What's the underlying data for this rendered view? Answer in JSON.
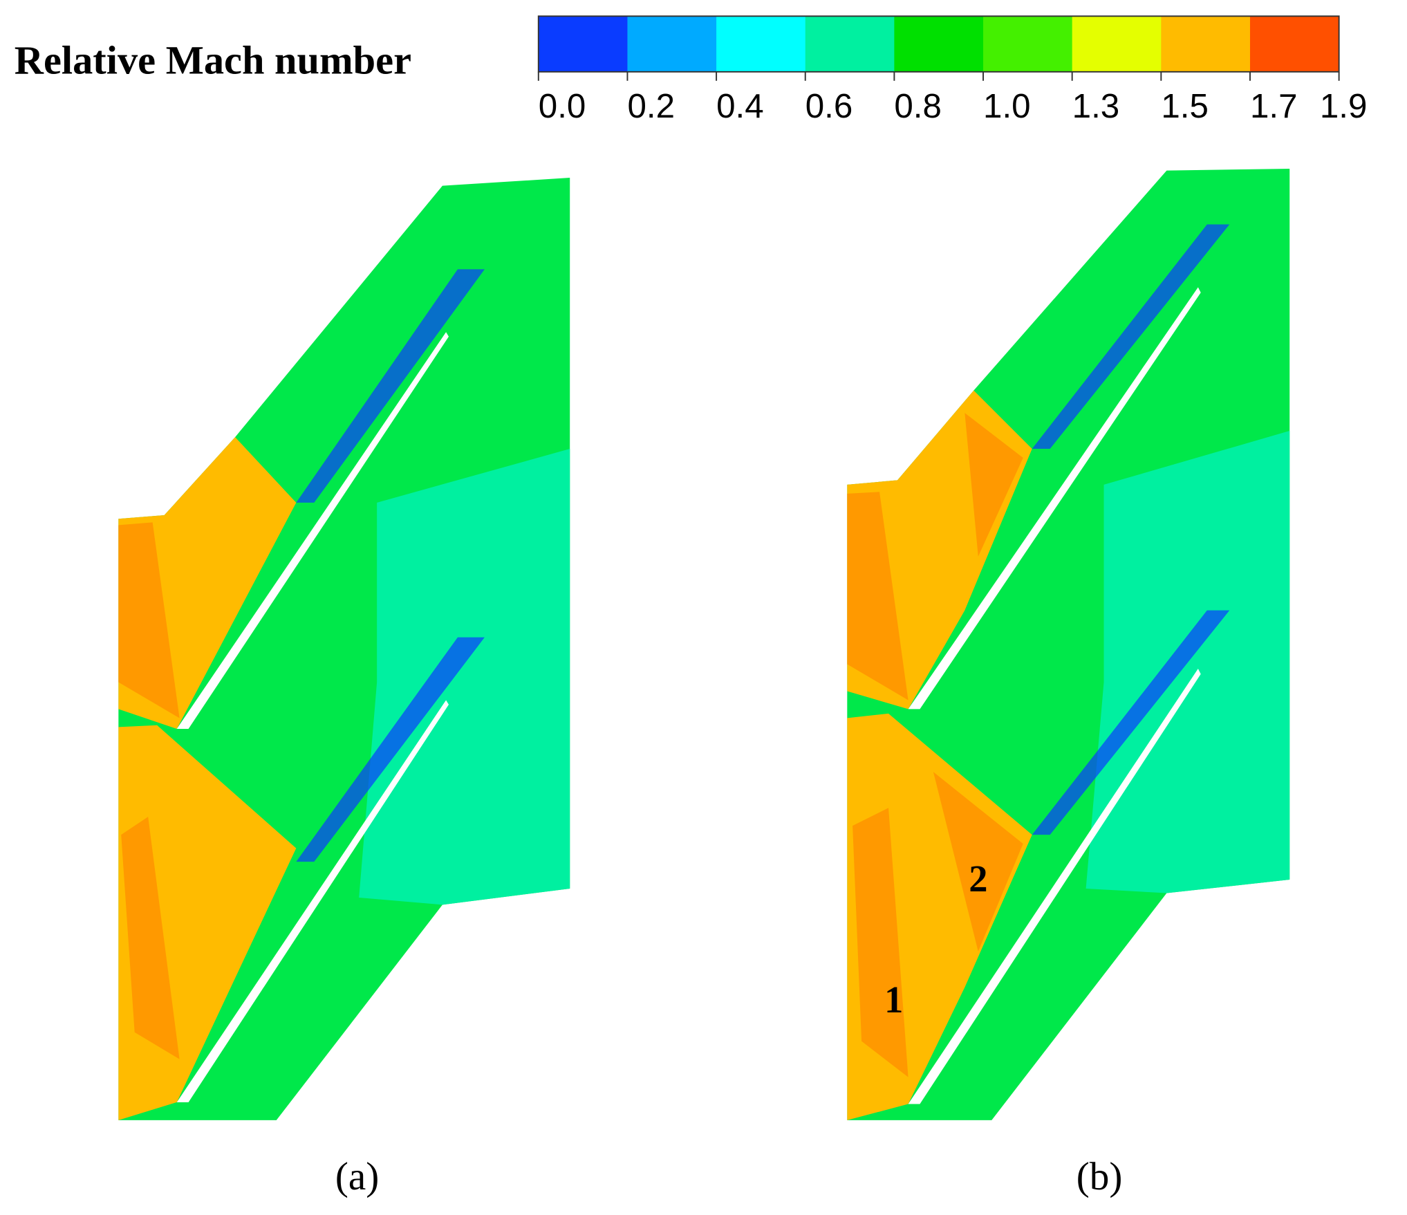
{
  "colorbar": {
    "title": "Relative Mach number",
    "ticks": [
      "0.0",
      "0.2",
      "0.4",
      "0.6",
      "0.8",
      "1.0",
      "1.3",
      "1.5",
      "1.7",
      "1.9"
    ],
    "colors": [
      "#0a3cff",
      "#00aaff",
      "#00ffff",
      "#00f0a0",
      "#00e000",
      "#44f000",
      "#e4ff00",
      "#ffbb00",
      "#ff5000"
    ]
  },
  "panels": [
    {
      "label": "(a)"
    },
    {
      "label": "(b)",
      "annotations": [
        "1",
        "2"
      ]
    }
  ]
}
